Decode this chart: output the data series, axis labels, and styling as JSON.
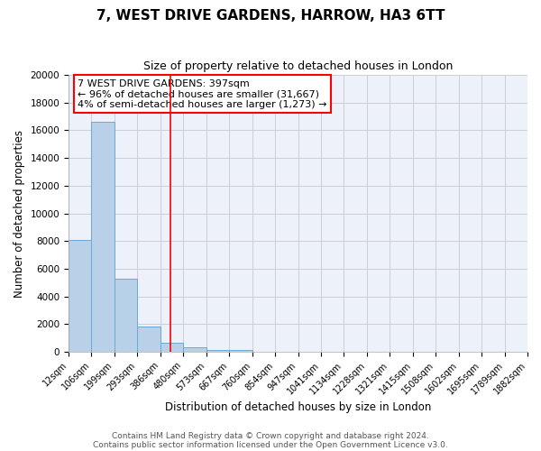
{
  "title": "7, WEST DRIVE GARDENS, HARROW, HA3 6TT",
  "subtitle": "Size of property relative to detached houses in London",
  "xlabel": "Distribution of detached houses by size in London",
  "ylabel": "Number of detached properties",
  "bar_heights": [
    8100,
    16600,
    5300,
    1850,
    650,
    300,
    150,
    100,
    0,
    0,
    0,
    0,
    0,
    0,
    0,
    0,
    0,
    0,
    0,
    0
  ],
  "n_bins": 20,
  "bar_color": "#b8d0e8",
  "bar_edge_color": "#6aaad4",
  "property_line_bin": 4.44,
  "property_line_color": "red",
  "annotation_title": "7 WEST DRIVE GARDENS: 397sqm",
  "annotation_line1": "← 96% of detached houses are smaller (31,667)",
  "annotation_line2": "4% of semi-detached houses are larger (1,273) →",
  "annotation_box_color": "white",
  "annotation_box_edge_color": "red",
  "tick_labels": [
    "12sqm",
    "106sqm",
    "199sqm",
    "293sqm",
    "386sqm",
    "480sqm",
    "573sqm",
    "667sqm",
    "760sqm",
    "854sqm",
    "947sqm",
    "1041sqm",
    "1134sqm",
    "1228sqm",
    "1321sqm",
    "1415sqm",
    "1508sqm",
    "1602sqm",
    "1695sqm",
    "1789sqm",
    "1882sqm"
  ],
  "ylim": [
    0,
    20000
  ],
  "yticks": [
    0,
    2000,
    4000,
    6000,
    8000,
    10000,
    12000,
    14000,
    16000,
    18000,
    20000
  ],
  "grid_color": "#c8c8d0",
  "background_color": "#edf2fa",
  "footer_line1": "Contains HM Land Registry data © Crown copyright and database right 2024.",
  "footer_line2": "Contains public sector information licensed under the Open Government Licence v3.0.",
  "title_fontsize": 11,
  "subtitle_fontsize": 9,
  "axis_label_fontsize": 8.5,
  "tick_fontsize": 7,
  "annotation_fontsize": 8,
  "footer_fontsize": 6.5
}
